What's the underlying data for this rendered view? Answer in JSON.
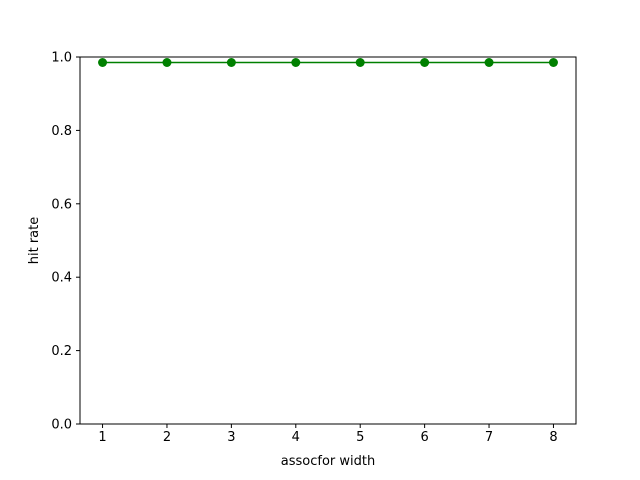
{
  "chart_data": {
    "type": "line",
    "title": "",
    "xlabel": "assocfor width",
    "ylabel": "hit rate",
    "x": [
      1,
      2,
      3,
      4,
      5,
      6,
      7,
      8
    ],
    "xticks": [
      "1",
      "2",
      "3",
      "4",
      "5",
      "6",
      "7",
      "8"
    ],
    "yticks": [
      "0.0",
      "0.2",
      "0.4",
      "0.6",
      "0.8",
      "1.0"
    ],
    "xlim": [
      0.65,
      8.35
    ],
    "ylim": [
      0.0,
      1.0
    ],
    "grid": false,
    "series": [
      {
        "values": [
          0.985,
          0.985,
          0.985,
          0.985,
          0.985,
          0.985,
          0.985,
          0.985
        ],
        "color": "#008000",
        "marker": "circle"
      }
    ]
  }
}
